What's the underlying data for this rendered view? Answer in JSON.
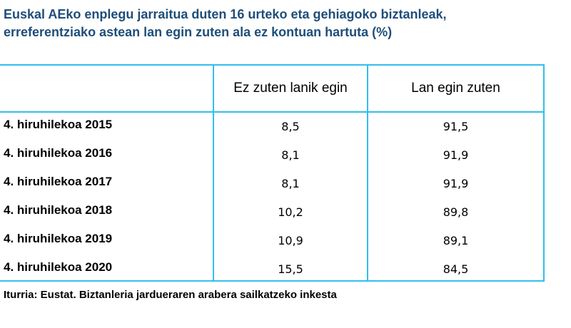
{
  "title_line1": "Euskal AEko enplegu jarraitua duten 16 urteko eta gehiagoko biztanleak,",
  "title_line2": "erreferentziako astean lan egin zuten ala ez kontuan hartuta (%)",
  "source": "Iturria: Eustat. Biztanleria jardueraren arabera sailkatzeko inkesta",
  "colors": {
    "title": "#1f4e79",
    "grid": "#33bdef"
  },
  "chart_data": {
    "type": "table",
    "columns": [
      "Ez zuten lanik egin",
      "Lan egin zuten"
    ],
    "rows": [
      {
        "label": "4. hiruhilekoa 2015",
        "values": [
          "8,5",
          "91,5"
        ]
      },
      {
        "label": "4. hiruhilekoa 2016",
        "values": [
          "8,1",
          "91,9"
        ]
      },
      {
        "label": "4. hiruhilekoa 2017",
        "values": [
          "8,1",
          "91,9"
        ]
      },
      {
        "label": "4. hiruhilekoa 2018",
        "values": [
          "10,2",
          "89,8"
        ]
      },
      {
        "label": "4. hiruhilekoa 2019",
        "values": [
          "10,9",
          "89,1"
        ]
      },
      {
        "label": "4. hiruhilekoa 2020",
        "values": [
          "15,5",
          "84,5"
        ]
      }
    ]
  }
}
